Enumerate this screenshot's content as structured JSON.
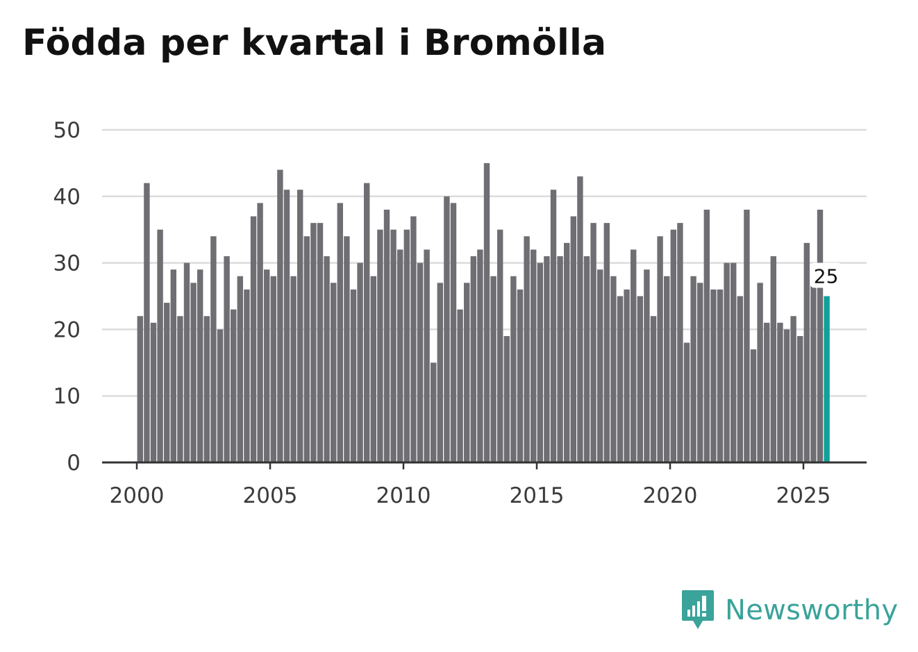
{
  "chart_data": {
    "type": "bar",
    "title": "Födda per kvartal i Bromölla",
    "xlabel": "",
    "ylabel": "",
    "ylim": [
      0,
      50
    ],
    "yticks": [
      "0",
      "10",
      "20",
      "30",
      "40",
      "50"
    ],
    "xticks": [
      "2000",
      "2005",
      "2010",
      "2015",
      "2020",
      "2025"
    ],
    "start_year": 2000,
    "periods_per_year": 4,
    "values": [
      22,
      42,
      21,
      35,
      24,
      29,
      22,
      30,
      27,
      29,
      22,
      34,
      20,
      31,
      23,
      28,
      26,
      37,
      39,
      29,
      28,
      44,
      41,
      28,
      41,
      34,
      36,
      36,
      31,
      27,
      39,
      34,
      26,
      30,
      42,
      28,
      35,
      38,
      35,
      32,
      35,
      37,
      30,
      32,
      15,
      27,
      40,
      39,
      23,
      27,
      31,
      32,
      45,
      28,
      35,
      19,
      28,
      26,
      34,
      32,
      30,
      31,
      41,
      31,
      33,
      37,
      43,
      31,
      36,
      29,
      36,
      28,
      25,
      26,
      32,
      25,
      29,
      22,
      34,
      28,
      35,
      36,
      18,
      28,
      27,
      38,
      26,
      26,
      30,
      30,
      25,
      38,
      17,
      27,
      21,
      31,
      21,
      20,
      22,
      19,
      33,
      27,
      38,
      25
    ],
    "highlight_index": 103,
    "highlight_label": "25",
    "bar_color": "#6e6e73",
    "highlight_color": "#12a09a",
    "grid_color": "#dcdcdc",
    "axis_color": "#333333"
  },
  "branding": {
    "name": "Newsworthy",
    "color": "#3aa39a"
  }
}
